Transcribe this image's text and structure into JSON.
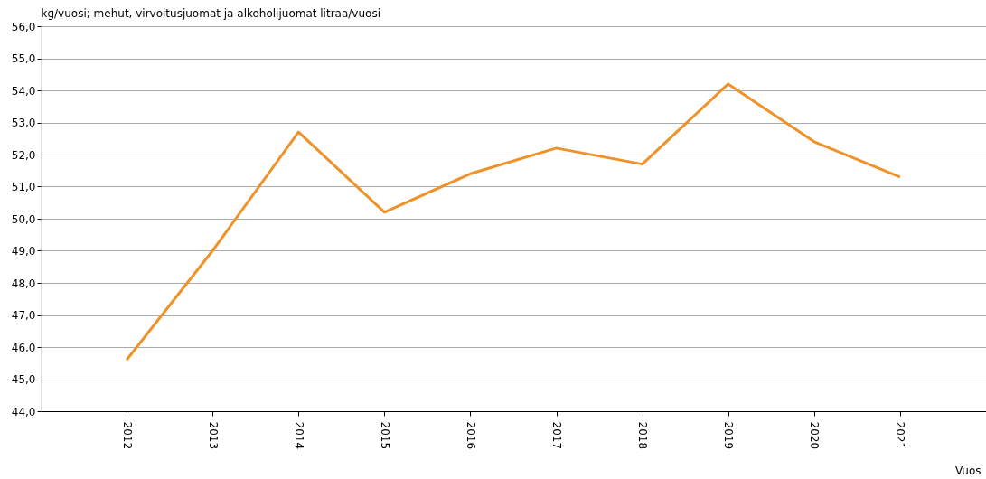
{
  "chart_data": {
    "type": "line",
    "ylabel": "kg/vuosi; mehut, virvoitusjuomat ja alkoholijuomat litraa/vuosi",
    "xlabel": "Vuos",
    "categories": [
      "2012",
      "2013",
      "2014",
      "2015",
      "2016",
      "2017",
      "2018",
      "2019",
      "2020",
      "2021"
    ],
    "series": [
      {
        "color": "#f0922a",
        "values": [
          45.6,
          49.0,
          52.7,
          50.2,
          51.4,
          52.2,
          51.7,
          54.2,
          52.4,
          51.3
        ]
      }
    ],
    "ylim": [
      44,
      56
    ],
    "yticks": [
      {
        "value": 44,
        "label": "44,0"
      },
      {
        "value": 45,
        "label": "45,0"
      },
      {
        "value": 46,
        "label": "46,0"
      },
      {
        "value": 47,
        "label": "47,0"
      },
      {
        "value": 48,
        "label": "48,0"
      },
      {
        "value": 49,
        "label": "49,0"
      },
      {
        "value": 50,
        "label": "50,0"
      },
      {
        "value": 51,
        "label": "51,0"
      },
      {
        "value": 52,
        "label": "52,0"
      },
      {
        "value": 53,
        "label": "53,0"
      },
      {
        "value": 54,
        "label": "54,0"
      },
      {
        "value": 55,
        "label": "55,0"
      },
      {
        "value": 56,
        "label": "56,0"
      }
    ],
    "grid": "y",
    "marker": "none",
    "line_style": "solid",
    "legend": false
  }
}
